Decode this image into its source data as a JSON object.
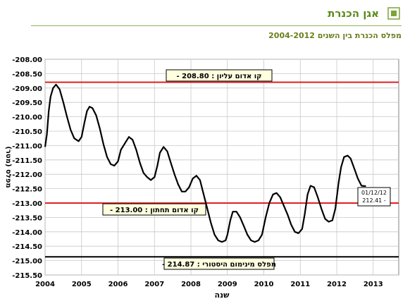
{
  "header": {
    "title": "אגן הכנרת",
    "icon": "bullet-square-icon",
    "accent_color": "#5a8a1a"
  },
  "subtitle": "מפלס הכנרת בין השנים 2004-2012",
  "chart_data": {
    "type": "line",
    "xlabel": "שנה",
    "ylabel": "מפלס (מטר)",
    "x_ticks": [
      "2004",
      "2005",
      "2006",
      "2007",
      "2008",
      "2009",
      "2010",
      "2011",
      "2012",
      "2013"
    ],
    "xlim": [
      2004,
      2013.7
    ],
    "ylim": [
      -215.5,
      -208.0
    ],
    "y_ticks": [
      "-208.00",
      "-208.50",
      "-209.00",
      "-209.50",
      "-210.00",
      "-210.50",
      "-211.00",
      "-211.50",
      "-212.00",
      "-212.50",
      "-213.00",
      "-213.50",
      "-214.00",
      "-214.50",
      "-215.00",
      "-215.50"
    ],
    "grid": true,
    "series": [
      {
        "color": "#000000",
        "points": [
          [
            2004.0,
            -211.05
          ],
          [
            2004.05,
            -210.6
          ],
          [
            2004.1,
            -209.8
          ],
          [
            2004.15,
            -209.3
          ],
          [
            2004.22,
            -209.0
          ],
          [
            2004.3,
            -208.88
          ],
          [
            2004.4,
            -209.05
          ],
          [
            2004.5,
            -209.5
          ],
          [
            2004.6,
            -210.0
          ],
          [
            2004.7,
            -210.45
          ],
          [
            2004.8,
            -210.75
          ],
          [
            2004.92,
            -210.85
          ],
          [
            2005.0,
            -210.7
          ],
          [
            2005.08,
            -210.2
          ],
          [
            2005.15,
            -209.8
          ],
          [
            2005.22,
            -209.65
          ],
          [
            2005.3,
            -209.7
          ],
          [
            2005.4,
            -209.95
          ],
          [
            2005.5,
            -210.4
          ],
          [
            2005.6,
            -210.95
          ],
          [
            2005.7,
            -211.4
          ],
          [
            2005.8,
            -211.65
          ],
          [
            2005.9,
            -211.7
          ],
          [
            2006.0,
            -211.55
          ],
          [
            2006.08,
            -211.15
          ],
          [
            2006.2,
            -210.9
          ],
          [
            2006.3,
            -210.7
          ],
          [
            2006.4,
            -210.8
          ],
          [
            2006.5,
            -211.15
          ],
          [
            2006.6,
            -211.6
          ],
          [
            2006.7,
            -211.95
          ],
          [
            2006.8,
            -212.1
          ],
          [
            2006.9,
            -212.2
          ],
          [
            2007.0,
            -212.1
          ],
          [
            2007.08,
            -211.7
          ],
          [
            2007.15,
            -211.25
          ],
          [
            2007.25,
            -211.05
          ],
          [
            2007.35,
            -211.2
          ],
          [
            2007.45,
            -211.6
          ],
          [
            2007.55,
            -212.0
          ],
          [
            2007.65,
            -212.35
          ],
          [
            2007.75,
            -212.6
          ],
          [
            2007.85,
            -212.6
          ],
          [
            2007.95,
            -212.45
          ],
          [
            2008.05,
            -212.15
          ],
          [
            2008.15,
            -212.05
          ],
          [
            2008.25,
            -212.2
          ],
          [
            2008.35,
            -212.7
          ],
          [
            2008.45,
            -213.2
          ],
          [
            2008.55,
            -213.7
          ],
          [
            2008.65,
            -214.1
          ],
          [
            2008.75,
            -214.3
          ],
          [
            2008.85,
            -214.35
          ],
          [
            2008.95,
            -214.3
          ],
          [
            2009.0,
            -214.1
          ],
          [
            2009.08,
            -213.6
          ],
          [
            2009.15,
            -213.3
          ],
          [
            2009.25,
            -213.3
          ],
          [
            2009.35,
            -213.5
          ],
          [
            2009.45,
            -213.8
          ],
          [
            2009.55,
            -214.1
          ],
          [
            2009.65,
            -214.3
          ],
          [
            2009.75,
            -214.35
          ],
          [
            2009.85,
            -214.3
          ],
          [
            2009.95,
            -214.1
          ],
          [
            2010.05,
            -213.5
          ],
          [
            2010.15,
            -213.0
          ],
          [
            2010.25,
            -212.7
          ],
          [
            2010.35,
            -212.65
          ],
          [
            2010.45,
            -212.8
          ],
          [
            2010.55,
            -213.1
          ],
          [
            2010.65,
            -213.4
          ],
          [
            2010.75,
            -213.75
          ],
          [
            2010.85,
            -214.0
          ],
          [
            2010.95,
            -214.05
          ],
          [
            2011.05,
            -213.9
          ],
          [
            2011.12,
            -213.4
          ],
          [
            2011.2,
            -212.7
          ],
          [
            2011.28,
            -212.4
          ],
          [
            2011.38,
            -212.45
          ],
          [
            2011.48,
            -212.8
          ],
          [
            2011.58,
            -213.2
          ],
          [
            2011.68,
            -213.55
          ],
          [
            2011.78,
            -213.65
          ],
          [
            2011.88,
            -213.6
          ],
          [
            2011.96,
            -213.2
          ],
          [
            2012.05,
            -212.3
          ],
          [
            2012.12,
            -211.75
          ],
          [
            2012.2,
            -211.4
          ],
          [
            2012.3,
            -211.35
          ],
          [
            2012.38,
            -211.45
          ],
          [
            2012.48,
            -211.8
          ],
          [
            2012.58,
            -212.15
          ],
          [
            2012.68,
            -212.4
          ],
          [
            2012.76,
            -212.41
          ],
          [
            2012.8,
            -212.41
          ]
        ]
      }
    ],
    "reference_lines": [
      {
        "y": -208.8,
        "color": "#e02020",
        "label": "קו אדום עליון : 208.80 -"
      },
      {
        "y": -213.0,
        "color": "#e02020",
        "label": "קו אדום תחתון : 213.00 -"
      },
      {
        "y": -214.87,
        "color": "#000000",
        "label": "מפלס מינימום היסטורי : 214.87 -"
      }
    ],
    "annotation": {
      "lines": [
        "01/12/12",
        "212.41 -"
      ]
    }
  }
}
